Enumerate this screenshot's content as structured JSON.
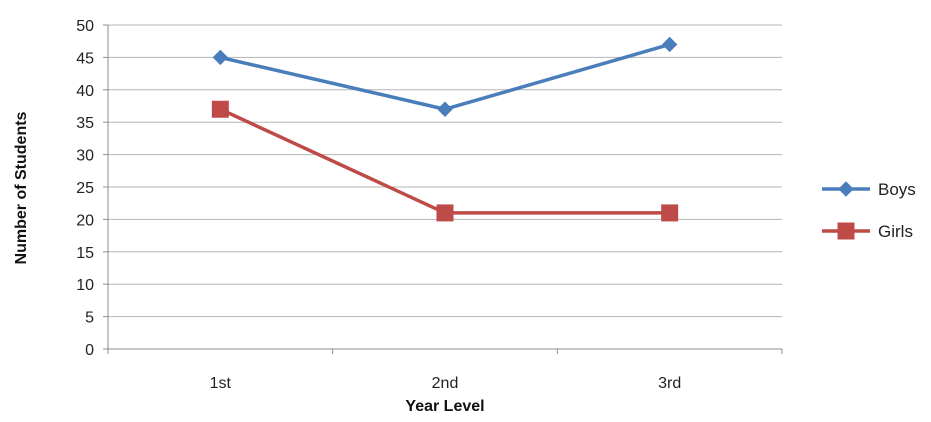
{
  "chart_data": {
    "type": "line",
    "categories": [
      "1st",
      "2nd",
      "3rd"
    ],
    "series": [
      {
        "name": "Boys",
        "values": [
          45,
          37,
          47
        ],
        "color": "#4a7ebb",
        "marker": "diamond"
      },
      {
        "name": "Girls",
        "values": [
          37,
          21,
          21
        ],
        "color": "#be4b48",
        "marker": "square"
      }
    ],
    "xlabel": "Year Level",
    "ylabel": "Number of Students",
    "ylim": [
      0,
      50
    ],
    "yticks": [
      0,
      5,
      10,
      15,
      20,
      25,
      30,
      35,
      40,
      45,
      50
    ],
    "grid": true,
    "legend_position": "right"
  }
}
